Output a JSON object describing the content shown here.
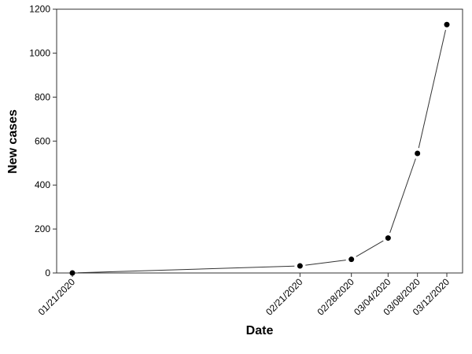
{
  "chart_data": {
    "type": "line",
    "title": "",
    "xlabel": "Date",
    "ylabel": "New cases",
    "x": [
      "01/21/2020",
      "02/21/2020",
      "02/28/2020",
      "03/04/2020",
      "03/08/2020",
      "03/12/2020"
    ],
    "values": [
      0,
      32,
      62,
      159,
      544,
      1130
    ],
    "ylim": [
      0,
      1200
    ],
    "yticks": [
      0,
      200,
      400,
      600,
      800,
      1000,
      1200
    ],
    "xticks": [
      "01/21/2020",
      "02/21/2020",
      "02/28/2020",
      "03/04/2020",
      "03/08/2020",
      "03/12/2020"
    ],
    "grid": false,
    "markers": true,
    "line_color": "#333333",
    "marker_color": "#000000"
  }
}
